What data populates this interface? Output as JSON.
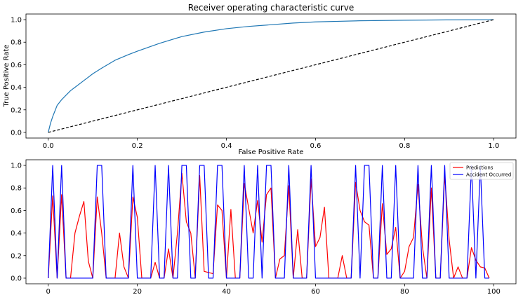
{
  "chart_data": [
    {
      "type": "line",
      "title": "Receiver operating characteristic curve",
      "xlabel": "False Positive Rate",
      "ylabel": "True Positive Rate",
      "xlim": [
        -0.05,
        1.05
      ],
      "ylim": [
        -0.05,
        1.05
      ],
      "xticks": [
        0.0,
        0.2,
        0.4,
        0.6,
        0.8,
        1.0
      ],
      "xtick_labels": [
        "0.0",
        "0.2",
        "0.4",
        "0.6",
        "0.8",
        "1.0"
      ],
      "yticks": [
        0.0,
        0.2,
        0.4,
        0.6,
        0.8,
        1.0
      ],
      "ytick_labels": [
        "0.0",
        "0.2",
        "0.4",
        "0.6",
        "0.8",
        "1.0"
      ],
      "grid": false,
      "series": [
        {
          "color": "#1f77b4",
          "style": "solid",
          "x": [
            0.0,
            0.005,
            0.01,
            0.015,
            0.02,
            0.03,
            0.04,
            0.05,
            0.06,
            0.08,
            0.1,
            0.12,
            0.15,
            0.18,
            0.2,
            0.25,
            0.3,
            0.35,
            0.4,
            0.45,
            0.5,
            0.55,
            0.6,
            0.65,
            0.7,
            0.8,
            0.9,
            1.0
          ],
          "y": [
            0.0,
            0.08,
            0.14,
            0.19,
            0.24,
            0.29,
            0.33,
            0.37,
            0.4,
            0.46,
            0.52,
            0.57,
            0.64,
            0.69,
            0.72,
            0.79,
            0.85,
            0.89,
            0.92,
            0.94,
            0.955,
            0.97,
            0.98,
            0.985,
            0.99,
            0.995,
            0.998,
            1.0
          ]
        },
        {
          "color": "#000000",
          "style": "dashed",
          "x": [
            0.0,
            1.0
          ],
          "y": [
            0.0,
            1.0
          ]
        }
      ]
    },
    {
      "type": "line",
      "title": "",
      "xlabel": "",
      "ylabel": "",
      "xlim": [
        -5,
        105
      ],
      "ylim": [
        -0.05,
        1.05
      ],
      "xticks": [
        0,
        20,
        40,
        60,
        80,
        100
      ],
      "xtick_labels": [
        "0",
        "20",
        "40",
        "60",
        "80",
        "100"
      ],
      "yticks": [
        0.0,
        0.2,
        0.4,
        0.6,
        0.8,
        1.0
      ],
      "ytick_labels": [
        "0.0",
        "0.2",
        "0.4",
        "0.6",
        "0.8",
        "1.0"
      ],
      "grid": false,
      "legend_position": "top-right",
      "series": [
        {
          "name": "Predictions",
          "color": "#ff0000",
          "values": [
            0.0,
            0.73,
            0.0,
            0.74,
            0.0,
            0.0,
            0.4,
            0.55,
            0.68,
            0.15,
            0.0,
            0.72,
            0.4,
            0.0,
            0.0,
            0.0,
            0.4,
            0.1,
            0.0,
            0.72,
            0.54,
            0.0,
            0.0,
            0.0,
            0.14,
            0.0,
            0.0,
            0.26,
            0.0,
            0.4,
            0.93,
            0.5,
            0.4,
            0.0,
            0.91,
            0.06,
            0.05,
            0.04,
            0.65,
            0.6,
            0.0,
            0.61,
            0.0,
            0.0,
            0.84,
            0.62,
            0.4,
            0.69,
            0.32,
            0.74,
            0.8,
            0.0,
            0.17,
            0.2,
            0.82,
            0.0,
            0.43,
            0.0,
            0.0,
            0.88,
            0.28,
            0.36,
            0.63,
            0.0,
            0.0,
            0.0,
            0.2,
            0.0,
            0.0,
            0.85,
            0.6,
            0.5,
            0.47,
            0.0,
            0.0,
            0.66,
            0.21,
            0.26,
            0.45,
            0.0,
            0.06,
            0.28,
            0.36,
            0.83,
            0.28,
            0.0,
            0.8,
            0.0,
            0.0,
            0.92,
            0.34,
            0.0,
            0.1,
            0.0,
            0.0,
            0.27,
            0.16,
            0.1,
            0.09,
            0.0
          ],
          "x": [
            0,
            1,
            2,
            3,
            4,
            5,
            6,
            7,
            8,
            9,
            10,
            11,
            12,
            13,
            14,
            15,
            16,
            17,
            18,
            19,
            20,
            21,
            22,
            23,
            24,
            25,
            26,
            27,
            28,
            29,
            30,
            31,
            32,
            33,
            34,
            35,
            36,
            37,
            38,
            39,
            40,
            41,
            42,
            43,
            44,
            45,
            46,
            47,
            48,
            49,
            50,
            51,
            52,
            53,
            54,
            55,
            56,
            57,
            58,
            59,
            60,
            61,
            62,
            63,
            64,
            65,
            66,
            67,
            68,
            69,
            70,
            71,
            72,
            73,
            74,
            75,
            76,
            77,
            78,
            79,
            80,
            81,
            82,
            83,
            84,
            85,
            86,
            87,
            88,
            89,
            90,
            91,
            92,
            93,
            94,
            95,
            96,
            97,
            98,
            99
          ]
        },
        {
          "name": "Accident Occurred",
          "color": "#0000ff",
          "values": [
            0,
            1,
            0,
            1,
            0,
            0,
            0,
            0,
            0,
            0,
            0,
            1,
            1,
            0,
            0,
            0,
            0,
            0,
            0,
            1,
            0,
            0,
            0,
            0,
            1,
            0,
            0,
            1,
            0,
            0,
            1,
            1,
            0,
            0,
            1,
            1,
            0,
            0,
            1,
            1,
            0,
            0,
            0,
            0,
            1,
            0,
            0,
            1,
            0,
            1,
            1,
            0,
            0,
            0,
            1,
            0,
            0,
            0,
            0,
            1,
            0,
            0,
            0,
            0,
            0,
            0,
            0,
            0,
            0,
            1,
            0,
            1,
            1,
            0,
            0,
            1,
            0,
            0,
            1,
            0,
            0,
            0,
            0,
            1,
            0,
            0,
            1,
            0,
            0,
            1,
            0,
            0,
            0,
            0,
            0,
            1,
            0,
            1,
            0,
            0
          ],
          "x": [
            0,
            1,
            2,
            3,
            4,
            5,
            6,
            7,
            8,
            9,
            10,
            11,
            12,
            13,
            14,
            15,
            16,
            17,
            18,
            19,
            20,
            21,
            22,
            23,
            24,
            25,
            26,
            27,
            28,
            29,
            30,
            31,
            32,
            33,
            34,
            35,
            36,
            37,
            38,
            39,
            40,
            41,
            42,
            43,
            44,
            45,
            46,
            47,
            48,
            49,
            50,
            51,
            52,
            53,
            54,
            55,
            56,
            57,
            58,
            59,
            60,
            61,
            62,
            63,
            64,
            65,
            66,
            67,
            68,
            69,
            70,
            71,
            72,
            73,
            74,
            75,
            76,
            77,
            78,
            79,
            80,
            81,
            82,
            83,
            84,
            85,
            86,
            87,
            88,
            89,
            90,
            91,
            92,
            93,
            94,
            95,
            96,
            97,
            98,
            99
          ]
        }
      ]
    }
  ]
}
